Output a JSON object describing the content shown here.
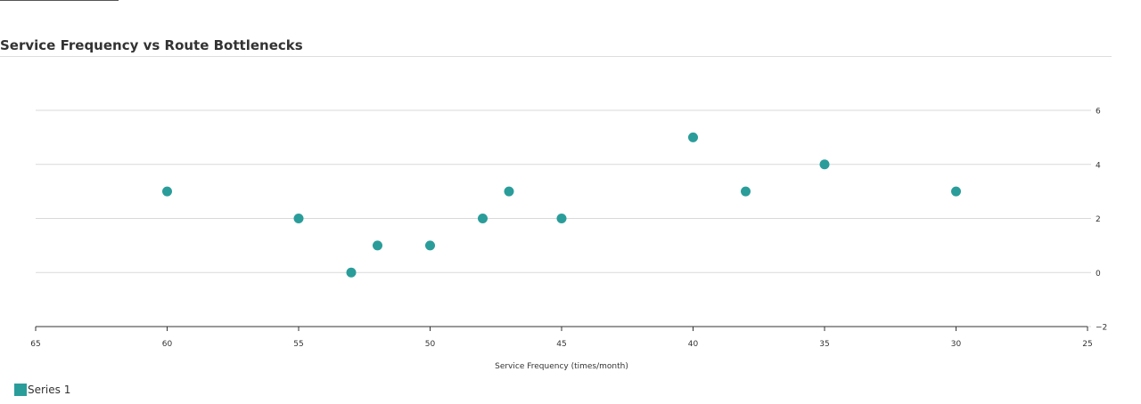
{
  "page": {
    "title": "Service Frequency vs Route Bottlenecks"
  },
  "colors": {
    "series": "#2a9d9a",
    "grid": "#d9d9d9",
    "axis": "#333333"
  },
  "chart_data": {
    "type": "scatter",
    "title": "Service Frequency vs Route Bottlenecks",
    "xlabel": "Service Frequency (times/month)",
    "ylabel": "",
    "xlim": [
      65,
      25
    ],
    "x_reversed": true,
    "ylim": [
      -2,
      6
    ],
    "x_ticks": [
      65,
      60,
      55,
      50,
      45,
      40,
      35,
      30,
      25
    ],
    "y_ticks": [
      -2,
      0,
      2,
      4,
      6
    ],
    "y_axis_side": "right",
    "grid": "horizontal",
    "legend_position": "bottom-left",
    "series": [
      {
        "name": "Series 1",
        "color": "#2a9d9a",
        "points": [
          {
            "x": 60,
            "y": 3
          },
          {
            "x": 55,
            "y": 2
          },
          {
            "x": 53,
            "y": 0
          },
          {
            "x": 52,
            "y": 1
          },
          {
            "x": 50,
            "y": 1
          },
          {
            "x": 48,
            "y": 2
          },
          {
            "x": 47,
            "y": 3
          },
          {
            "x": 45,
            "y": 2
          },
          {
            "x": 40,
            "y": 5
          },
          {
            "x": 38,
            "y": 3
          },
          {
            "x": 35,
            "y": 4
          },
          {
            "x": 30,
            "y": 3
          }
        ]
      }
    ]
  }
}
